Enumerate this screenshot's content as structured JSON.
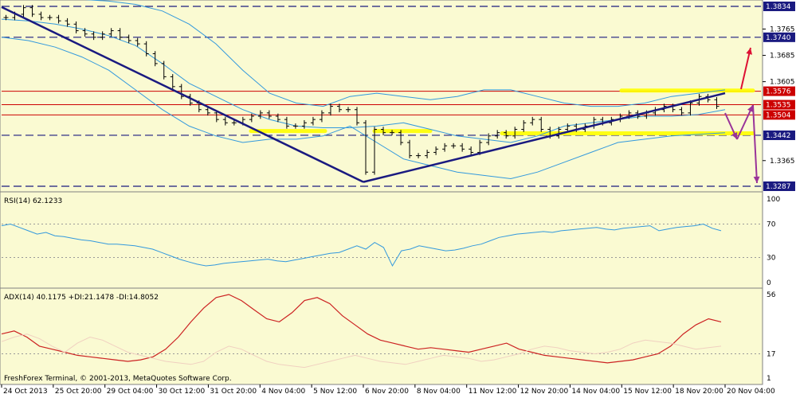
{
  "theme": {
    "background": "#fafad2",
    "frame": "#808080",
    "price_candles": "#000000",
    "bands": "#3399dd",
    "trend": "#1a1a80",
    "levels": "#cc0000",
    "horizontal_lines": "#1a1a80",
    "zones": "#ffff00",
    "arrow_up": "#dd1133",
    "arrow_down": "#993399",
    "rsi_line": "#3399dd",
    "adx_line": "#cc2222",
    "di_faint": "#f0d0c0"
  },
  "chart_data": [
    {
      "type": "line",
      "panel": "price",
      "title": "",
      "price_axis": [
        "1.3834",
        "1.3765",
        "1.3740",
        "1.3685",
        "1.3605",
        "1.3576",
        "1.3535",
        "1.3504",
        "1.3442",
        "1.3365",
        "1.3287"
      ],
      "ylim": [
        1.3287,
        1.3834
      ],
      "time_axis": [
        "24 Oct 2013",
        "25 Oct 20:00",
        "29 Oct 04:00",
        "30 Oct 12:00",
        "31 Oct 20:00",
        "4 Nov 04:00",
        "5 Nov 12:00",
        "6 Nov 20:00",
        "8 Nov 04:00",
        "11 Nov 12:00",
        "12 Nov 20:00",
        "14 Nov 04:00",
        "15 Nov 12:00",
        "18 Nov 20:00",
        "20 Nov 04:00"
      ],
      "blue_dashed_levels": [
        1.3834,
        1.374,
        1.3442,
        1.3287
      ],
      "red_levels": [
        1.3576,
        1.3535,
        1.3504
      ],
      "closes": [
        1.38,
        1.381,
        1.383,
        1.381,
        1.38,
        1.38,
        1.379,
        1.378,
        1.376,
        1.375,
        1.374,
        1.375,
        1.376,
        1.374,
        1.373,
        1.372,
        1.369,
        1.366,
        1.362,
        1.359,
        1.356,
        1.354,
        1.352,
        1.351,
        1.349,
        1.348,
        1.348,
        1.349,
        1.35,
        1.351,
        1.35,
        1.349,
        1.347,
        1.347,
        1.348,
        1.349,
        1.351,
        1.353,
        1.352,
        1.352,
        1.348,
        1.333,
        1.346,
        1.345,
        1.345,
        1.342,
        1.338,
        1.338,
        1.339,
        1.34,
        1.341,
        1.341,
        1.34,
        1.339,
        1.342,
        1.344,
        1.345,
        1.344,
        1.346,
        1.348,
        1.349,
        1.346,
        1.344,
        1.346,
        1.347,
        1.346,
        1.347,
        1.349,
        1.348,
        1.349,
        1.35,
        1.351,
        1.35,
        1.351,
        1.352,
        1.353,
        1.352,
        1.351,
        1.354,
        1.356,
        1.355,
        1.353
      ],
      "upper_band": [
        1.386,
        1.386,
        1.3858,
        1.3855,
        1.385,
        1.384,
        1.382,
        1.378,
        1.372,
        1.364,
        1.357,
        1.354,
        1.353,
        1.356,
        1.357,
        1.356,
        1.355,
        1.356,
        1.358,
        1.358,
        1.356,
        1.354,
        1.353,
        1.353,
        1.354,
        1.356,
        1.357,
        1.358
      ],
      "middle_band": [
        1.3795,
        1.379,
        1.378,
        1.3765,
        1.3745,
        1.3715,
        1.366,
        1.36,
        1.356,
        1.352,
        1.349,
        1.347,
        1.3465,
        1.3465,
        1.347,
        1.348,
        1.346,
        1.344,
        1.343,
        1.342,
        1.344,
        1.347,
        1.348,
        1.349,
        1.35,
        1.35,
        1.3505,
        1.352
      ],
      "lower_band": [
        1.374,
        1.373,
        1.371,
        1.368,
        1.364,
        1.358,
        1.352,
        1.347,
        1.344,
        1.342,
        1.343,
        1.343,
        1.344,
        1.347,
        1.342,
        1.337,
        1.335,
        1.333,
        1.332,
        1.331,
        1.333,
        1.336,
        1.339,
        1.342,
        1.343,
        1.344,
        1.3445,
        1.345
      ],
      "trend_lines": [
        {
          "from": [
            "24 Oct 2013",
            1.3832
          ],
          "to": [
            "6 Nov 20:00",
            1.33
          ]
        },
        {
          "from": [
            "6 Nov 20:00",
            1.33
          ],
          "to": [
            "20 Nov 04:00",
            1.357
          ]
        }
      ],
      "zones": [
        {
          "price": 1.3455,
          "label": ""
        },
        {
          "price": 1.3455,
          "label": ""
        },
        {
          "price": 1.3448,
          "label": ""
        },
        {
          "price": 1.3578,
          "label": ""
        }
      ]
    },
    {
      "type": "line",
      "panel": "rsi",
      "title": "RSI(14) 62.1233",
      "axis_labels": [
        "100",
        "70",
        "30",
        "0"
      ],
      "levels": [
        70,
        30
      ],
      "ylim": [
        0,
        100
      ],
      "values": [
        68,
        70,
        66,
        62,
        58,
        60,
        56,
        55,
        53,
        51,
        50,
        48,
        46,
        46,
        45,
        44,
        42,
        40,
        36,
        32,
        28,
        25,
        22,
        20,
        21,
        23,
        24,
        25,
        26,
        27,
        28,
        26,
        25,
        27,
        29,
        31,
        33,
        35,
        36,
        40,
        44,
        40,
        48,
        42,
        20,
        38,
        40,
        44,
        42,
        40,
        38,
        39,
        41,
        44,
        46,
        50,
        54,
        56,
        58,
        59,
        60,
        61,
        60,
        62,
        63,
        64,
        65,
        66,
        64,
        63,
        65,
        66,
        67,
        68,
        62,
        64,
        66,
        67,
        68,
        70,
        65,
        62
      ]
    },
    {
      "type": "line",
      "panel": "adx",
      "title": "ADX(14) 40.1175 +DI:21.1478 -DI:14.8052",
      "axis_labels": [
        "56",
        "17",
        "1"
      ],
      "ylim": [
        1,
        56
      ],
      "series": [
        {
          "name": "",
          "values": [
            30,
            32,
            28,
            22,
            20,
            18,
            16,
            15,
            14,
            13,
            12,
            13,
            15,
            20,
            28,
            38,
            47,
            54,
            56,
            52,
            46,
            40,
            38,
            44,
            52,
            54,
            50,
            42,
            36,
            30,
            26,
            24,
            22,
            20,
            21,
            20,
            19,
            18,
            20,
            22,
            24,
            20,
            18,
            16,
            15,
            14,
            13,
            12,
            11,
            12,
            13,
            15,
            17,
            22,
            30,
            36,
            40,
            38
          ]
        },
        {
          "name": "",
          "values": [
            25,
            28,
            30,
            27,
            22,
            18,
            24,
            28,
            26,
            22,
            18,
            16,
            14,
            12,
            11,
            10,
            12,
            18,
            22,
            20,
            16,
            12,
            10,
            9,
            8,
            10,
            12,
            14,
            16,
            14,
            12,
            11,
            10,
            12,
            14,
            16,
            15,
            14,
            12,
            13,
            15,
            17,
            20,
            22,
            21,
            19,
            18,
            17,
            18,
            20,
            24,
            26,
            25,
            24,
            22,
            20,
            21,
            22
          ]
        }
      ]
    }
  ],
  "footer": {
    "copyright": "FreshForex Terminal, © 2001-2013, MetaQuotes Software Corp."
  }
}
